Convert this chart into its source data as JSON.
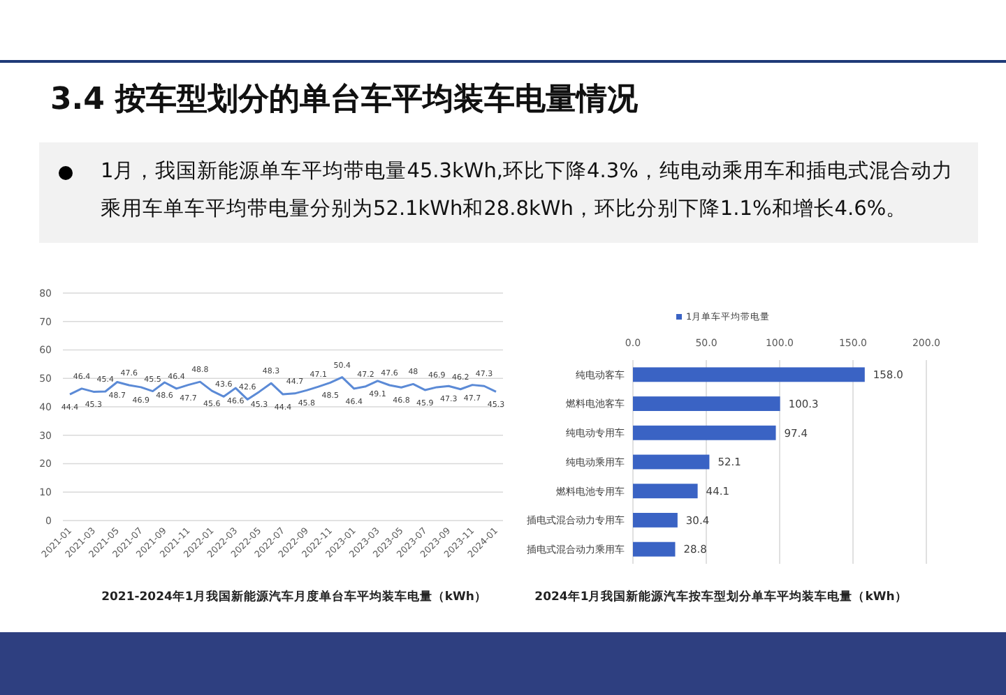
{
  "chart_data": [
    {
      "type": "other",
      "title": "3.4 按车型划分的单台车平均装车电量情况",
      "annotations": [
        "1月，我国新能源单车平均带电量45.3kWh,环比下降4.3%，纯电动乘用车和插电式混合动力乘用车单车平均带电量分别为52.1kWh和28.8kWh，环比分别下降1.1%和增长4.6%。"
      ]
    },
    {
      "type": "line",
      "title": "2021-2024年1月我国新能源汽车月度单台车平均装车电量（kWh）",
      "categories": [
        "2021-01",
        null,
        "2021-03",
        null,
        "2021-05",
        null,
        "2021-07",
        null,
        "2021-09",
        null,
        "2021-11",
        null,
        "2022-01",
        null,
        "2022-03",
        null,
        "2022-05",
        null,
        "2022-07",
        null,
        "2022-09",
        null,
        "2022-11",
        null,
        "2023-01",
        null,
        "2023-03",
        null,
        "2023-05",
        null,
        "2023-07",
        null,
        "2023-09",
        null,
        "2023-11",
        null,
        "2024-01"
      ],
      "series": [
        {
          "color": "#5b8ad6",
          "values": [
            44.4,
            46.4,
            45.3,
            45.4,
            48.7,
            47.6,
            46.9,
            45.5,
            48.6,
            46.4,
            47.7,
            48.8,
            45.6,
            43.6,
            46.6,
            42.6,
            45.3,
            48.3,
            44.4,
            44.7,
            45.8,
            47.1,
            48.5,
            50.4,
            46.4,
            47.2,
            49.1,
            47.6,
            46.8,
            48,
            45.9,
            46.9,
            47.3,
            46.2,
            47.7,
            47.3,
            45.3
          ]
        }
      ],
      "ylim": [
        0,
        80
      ],
      "yticks": [
        0,
        10,
        20,
        30,
        40,
        50,
        60,
        70,
        80
      ],
      "grid": "y",
      "data_labels": true,
      "marker": "none"
    },
    {
      "type": "bar",
      "orientation": "horizontal",
      "title": "2024年1月我国新能源汽车按车型划分单车平均装车电量（kWh）",
      "categories": [
        "纯电动客车",
        "燃料电池客车",
        "纯电动专用车",
        "纯电动乘用车",
        "燃料电池专用车",
        "插电式混合动力专用车",
        "插电式混合动力乘用车"
      ],
      "series": [
        {
          "name": "1月单车平均带电量",
          "color": "#3a63c4",
          "values": [
            158.0,
            100.3,
            97.4,
            52.1,
            44.1,
            30.4,
            28.8
          ],
          "value_labels": [
            "158.0",
            "100.3",
            "97.4",
            "52.1",
            "44.1",
            "30.4",
            "28.8"
          ]
        }
      ],
      "xlim": [
        0,
        200
      ],
      "xticks": [
        {
          "value": 0,
          "label": "0.0"
        },
        {
          "value": 50,
          "label": "50.0"
        },
        {
          "value": 100,
          "label": "100.0"
        },
        {
          "value": 150,
          "label": "150.0"
        },
        {
          "value": 200,
          "label": "200.0"
        }
      ],
      "grid": "x",
      "legend": "top"
    }
  ]
}
